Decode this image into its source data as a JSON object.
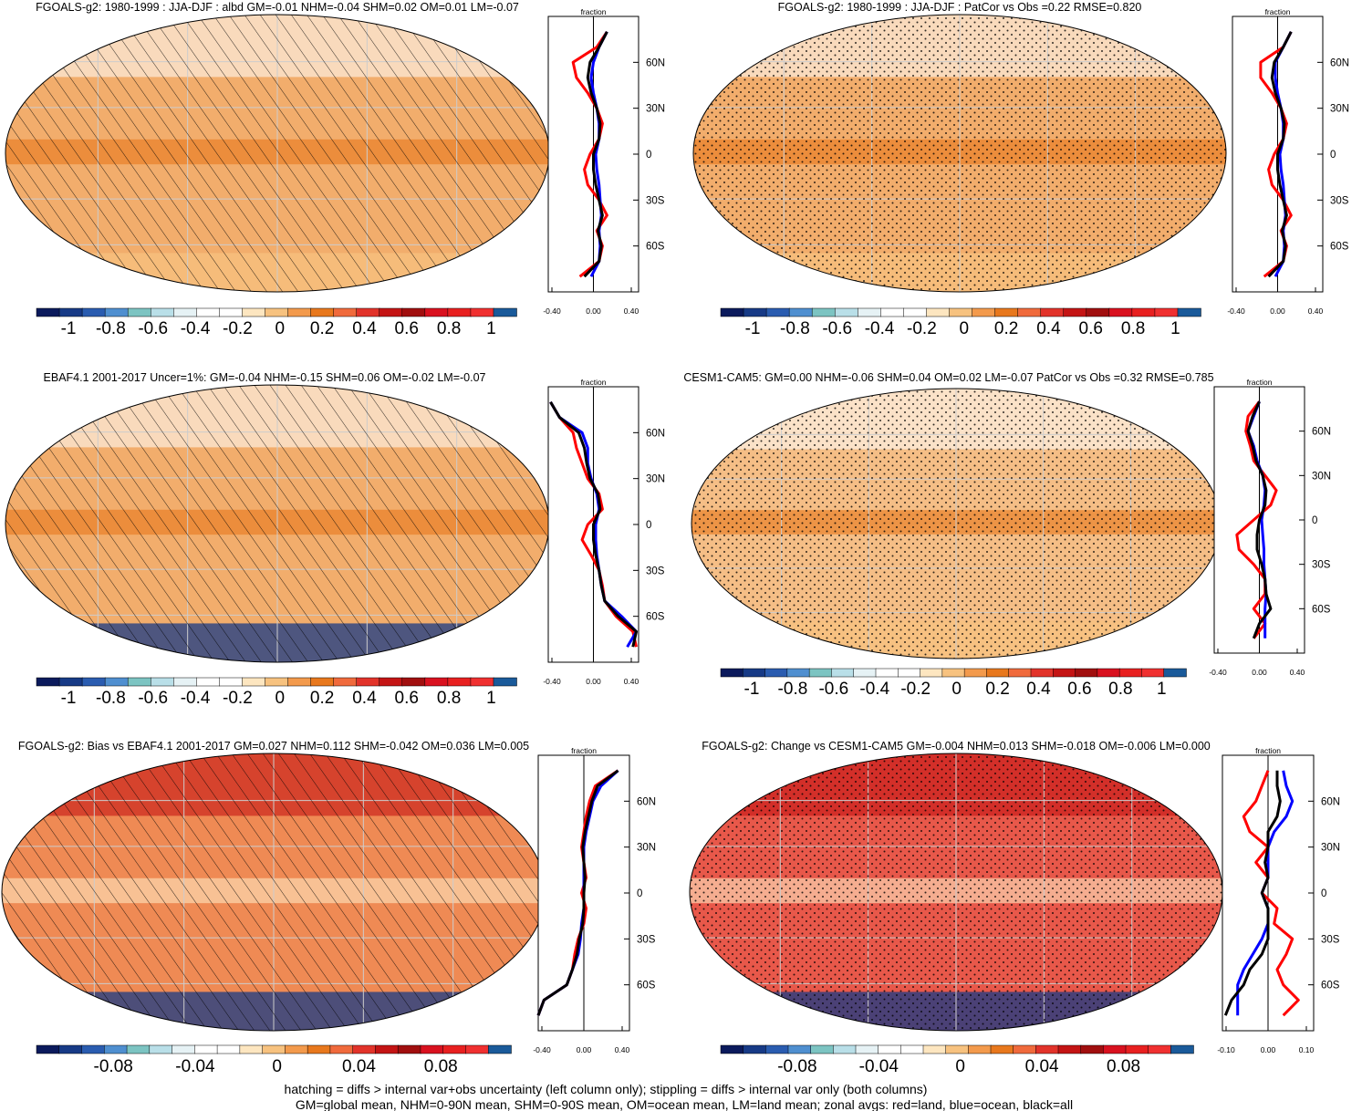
{
  "colorbar_a": {
    "labels": [
      "-1",
      "-0.8",
      "-0.6",
      "-0.4",
      "-0.2",
      "0",
      "0.2",
      "0.4",
      "0.6",
      "0.8",
      "1"
    ],
    "colors": [
      "#0b1a5c",
      "#173a86",
      "#2a5cb0",
      "#4f8fd0",
      "#7cc4c2",
      "#b9dfe8",
      "#e6f2f5",
      "#ffffff",
      "#ffffff",
      "#fde6c0",
      "#f7c27f",
      "#f39a4c",
      "#e8781d",
      "#f06a3c",
      "#e2332a",
      "#c41414",
      "#a10f0f",
      "#d9111f",
      "#e82020",
      "#f03030",
      "#1a5a9a"
    ]
  },
  "colorbar_b": {
    "labels": [
      "-0.08",
      "-0.04",
      "0",
      "0.04",
      "0.08"
    ],
    "colors": [
      "#0b1a5c",
      "#173a86",
      "#2a5cb0",
      "#4f8fd0",
      "#7cc4c2",
      "#b9dfe8",
      "#e6f2f5",
      "#ffffff",
      "#ffffff",
      "#fde6c0",
      "#f7c27f",
      "#f39a4c",
      "#e8781d",
      "#f06a3c",
      "#e2332a",
      "#c41414",
      "#a10f0f",
      "#d9111f",
      "#e82020",
      "#f03030",
      "#1a5a9a"
    ]
  },
  "chart_data": [
    {
      "type": "heatmap",
      "title": "FGOALS-g2: 1980-1999 : JJA-DJF : albd GM=-0.01 NHM=-0.04 SHM=0.02 OM=0.01 LM=-0.07",
      "colorbar": "colorbar_a",
      "map_fill": "#f2ad6c",
      "overlay": "hatch",
      "zonal": {
        "title": "fraction",
        "xlim": [
          -0.4,
          0.4
        ],
        "xticks": [
          "-0.40",
          "0.00",
          "0.40"
        ],
        "yticks": [
          "60N",
          "30N",
          "0",
          "30S",
          "60S"
        ],
        "lat": [
          80,
          70,
          60,
          50,
          40,
          30,
          20,
          10,
          0,
          -10,
          -20,
          -30,
          -40,
          -50,
          -60,
          -70,
          -80
        ],
        "land": [
          0.12,
          0.03,
          -0.18,
          -0.15,
          -0.05,
          0.03,
          0.08,
          0.05,
          -0.03,
          -0.08,
          -0.05,
          0.05,
          0.12,
          0.03,
          0.08,
          0.05,
          -0.12
        ],
        "ocean": [
          0.12,
          0.05,
          0.0,
          -0.02,
          0.0,
          0.03,
          0.05,
          0.05,
          0.02,
          0.03,
          0.05,
          0.06,
          0.07,
          0.05,
          0.06,
          0.05,
          -0.02
        ],
        "all": [
          0.12,
          0.05,
          -0.03,
          -0.05,
          -0.02,
          0.03,
          0.06,
          0.05,
          0.0,
          0.0,
          0.02,
          0.05,
          0.08,
          0.04,
          0.07,
          0.05,
          -0.08
        ]
      }
    },
    {
      "type": "heatmap",
      "title": "FGOALS-g2: 1980-1999 : JJA-DJF : PatCor vs Obs =0.22 RMSE=0.820",
      "colorbar": "colorbar_a",
      "map_fill": "#f2ad6c",
      "overlay": "stipple",
      "zonal": {
        "title": "fraction",
        "xlim": [
          -0.4,
          0.4
        ],
        "xticks": [
          "-0.40",
          "0.00",
          "0.40"
        ],
        "yticks": [
          "60N",
          "30N",
          "0",
          "30S",
          "60S"
        ],
        "lat": [
          80,
          70,
          60,
          50,
          40,
          30,
          20,
          10,
          0,
          -10,
          -20,
          -30,
          -40,
          -50,
          -60,
          -70,
          -80
        ],
        "land": [
          0.12,
          0.05,
          -0.15,
          -0.15,
          -0.05,
          0.03,
          0.08,
          0.05,
          -0.03,
          -0.08,
          -0.05,
          0.05,
          0.12,
          0.03,
          0.08,
          0.05,
          -0.12
        ],
        "ocean": [
          0.12,
          0.05,
          -0.02,
          -0.02,
          0.0,
          0.03,
          0.05,
          0.05,
          0.02,
          0.03,
          0.05,
          0.06,
          0.07,
          0.05,
          0.06,
          0.05,
          -0.02
        ],
        "all": [
          0.12,
          0.05,
          -0.03,
          -0.05,
          -0.02,
          0.03,
          0.06,
          0.05,
          0.0,
          0.0,
          0.02,
          0.05,
          0.08,
          0.04,
          0.07,
          0.05,
          -0.08
        ]
      }
    },
    {
      "type": "heatmap",
      "title": "EBAF4.1 2001-2017 Uncer=1%: GM=-0.04 NHM=-0.15 SHM=0.06 OM=-0.02 LM=-0.07",
      "colorbar": "colorbar_a",
      "map_fill": "#f2ad6c",
      "overlay": "hatch",
      "zonal": {
        "title": "fraction",
        "xlim": [
          -0.4,
          0.4
        ],
        "xticks": [
          "-0.40",
          "0.00",
          "0.40"
        ],
        "yticks": [
          "60N",
          "30N",
          "0",
          "30S",
          "60S"
        ],
        "lat": [
          80,
          70,
          60,
          50,
          40,
          30,
          20,
          10,
          0,
          -10,
          -20,
          -30,
          -40,
          -50,
          -60,
          -70,
          -80
        ],
        "land": [
          -0.38,
          -0.3,
          -0.18,
          -0.15,
          -0.1,
          -0.05,
          0.05,
          0.08,
          -0.05,
          -0.1,
          -0.02,
          0.05,
          0.08,
          0.1,
          0.2,
          0.35,
          0.38
        ],
        "ocean": [
          -0.38,
          -0.3,
          -0.1,
          -0.05,
          -0.05,
          -0.02,
          0.03,
          0.05,
          0.02,
          0.02,
          0.03,
          0.05,
          0.07,
          0.1,
          0.25,
          0.38,
          0.3
        ],
        "all": [
          -0.38,
          -0.3,
          -0.13,
          -0.08,
          -0.06,
          -0.03,
          0.04,
          0.06,
          0.0,
          0.0,
          0.02,
          0.05,
          0.07,
          0.1,
          0.22,
          0.38,
          0.35
        ]
      }
    },
    {
      "type": "heatmap",
      "title": "CESM1-CAM5: GM=0.00 NHM=-0.06 SHM=0.04 OM=0.02 LM=-0.07 PatCor vs Obs =0.32 RMSE=0.785",
      "colorbar": "colorbar_a",
      "map_fill": "#f5be86",
      "overlay": "stipple",
      "zonal": {
        "title": "fraction",
        "xlim": [
          -0.4,
          0.4
        ],
        "xticks": [
          "-0.40",
          "0.00",
          "0.40"
        ],
        "yticks": [
          "60N",
          "30N",
          "0",
          "30S",
          "60S"
        ],
        "lat": [
          80,
          70,
          60,
          50,
          40,
          30,
          20,
          10,
          0,
          -10,
          -20,
          -30,
          -40,
          -50,
          -60,
          -70,
          -80
        ],
        "land": [
          0.0,
          -0.1,
          -0.12,
          -0.08,
          -0.05,
          0.05,
          0.15,
          0.1,
          -0.05,
          -0.2,
          -0.18,
          -0.05,
          0.05,
          0.05,
          -0.05,
          0.05,
          -0.05
        ],
        "ocean": [
          0.0,
          -0.05,
          -0.1,
          -0.05,
          -0.02,
          0.03,
          0.05,
          0.04,
          0.02,
          0.03,
          0.04,
          0.04,
          0.05,
          0.06,
          0.05,
          0.05,
          0.05
        ],
        "all": [
          0.0,
          -0.06,
          -0.1,
          -0.06,
          -0.03,
          0.03,
          0.06,
          0.05,
          0.0,
          -0.02,
          -0.02,
          0.02,
          0.05,
          0.06,
          0.1,
          0.0,
          -0.05
        ]
      }
    },
    {
      "type": "heatmap",
      "title": "FGOALS-g2: Bias vs EBAF4.1 2001-2017 GM=0.027 NHM=0.112 SHM=-0.042 OM=0.036 LM=0.005",
      "colorbar": "colorbar_b",
      "map_fill": "#ef8a54",
      "overlay": "hatch",
      "zonal": {
        "title": "fraction",
        "xlim": [
          -0.4,
          0.4
        ],
        "xticks": [
          "-0.40",
          "0.00",
          "0.40"
        ],
        "yticks": [
          "60N",
          "30N",
          "0",
          "30S",
          "60S"
        ],
        "lat": [
          80,
          70,
          60,
          50,
          40,
          30,
          20,
          10,
          0,
          -10,
          -20,
          -30,
          -40,
          -50,
          -60,
          -70,
          -80
        ],
        "land": [
          0.3,
          0.1,
          0.05,
          0.02,
          0.0,
          -0.02,
          0.0,
          0.02,
          -0.02,
          0.02,
          0.0,
          -0.05,
          -0.08,
          -0.1,
          -0.15,
          -0.35,
          -0.4
        ],
        "ocean": [
          0.3,
          0.15,
          0.08,
          0.05,
          0.02,
          0.0,
          0.0,
          0.0,
          0.0,
          0.0,
          -0.02,
          -0.03,
          -0.05,
          -0.1,
          -0.15,
          -0.35,
          -0.4
        ],
        "all": [
          0.3,
          0.12,
          0.07,
          0.04,
          0.01,
          -0.01,
          0.0,
          0.01,
          0.0,
          0.0,
          -0.01,
          -0.04,
          -0.06,
          -0.1,
          -0.15,
          -0.35,
          -0.4
        ]
      }
    },
    {
      "type": "heatmap",
      "title": "FGOALS-g2: Change vs CESM1-CAM5 GM=-0.004 NHM=0.013 SHM=-0.018 OM=-0.006 LM=0.000",
      "colorbar": "colorbar_b",
      "map_fill": "#e8584a",
      "overlay": "stipple",
      "zonal": {
        "title": "fraction",
        "xlim": [
          -0.15,
          0.15
        ],
        "xticks": [
          "-0.10",
          "0.00",
          "0.10"
        ],
        "yticks": [
          "60N",
          "30N",
          "0",
          "30S",
          "60S"
        ],
        "lat": [
          80,
          70,
          60,
          50,
          40,
          30,
          20,
          10,
          0,
          -10,
          -20,
          -30,
          -40,
          -50,
          -60,
          -70,
          -80
        ],
        "land": [
          0.0,
          -0.02,
          -0.04,
          -0.08,
          -0.06,
          0.0,
          -0.04,
          0.0,
          -0.02,
          0.03,
          0.02,
          0.08,
          0.06,
          0.03,
          0.05,
          0.1,
          0.05
        ],
        "ocean": [
          0.05,
          0.06,
          0.08,
          0.06,
          0.02,
          0.0,
          0.0,
          0.0,
          -0.02,
          0.0,
          0.0,
          -0.02,
          -0.05,
          -0.08,
          -0.1,
          -0.1,
          -0.1
        ],
        "all": [
          0.03,
          0.03,
          0.04,
          0.03,
          0.0,
          0.0,
          -0.01,
          0.0,
          -0.02,
          0.0,
          0.0,
          0.0,
          -0.02,
          -0.06,
          -0.08,
          -0.12,
          -0.14
        ]
      }
    }
  ],
  "footer": {
    "line1": "hatching = diffs > internal var+obs uncertainty (left column only); stippling = diffs > internal var only (both columns)",
    "line2": "GM=global mean, NHM=0-90N mean, SHM=0-90S mean, OM=ocean mean, LM=land mean; zonal avgs: red=land, blue=ocean, black=all"
  }
}
